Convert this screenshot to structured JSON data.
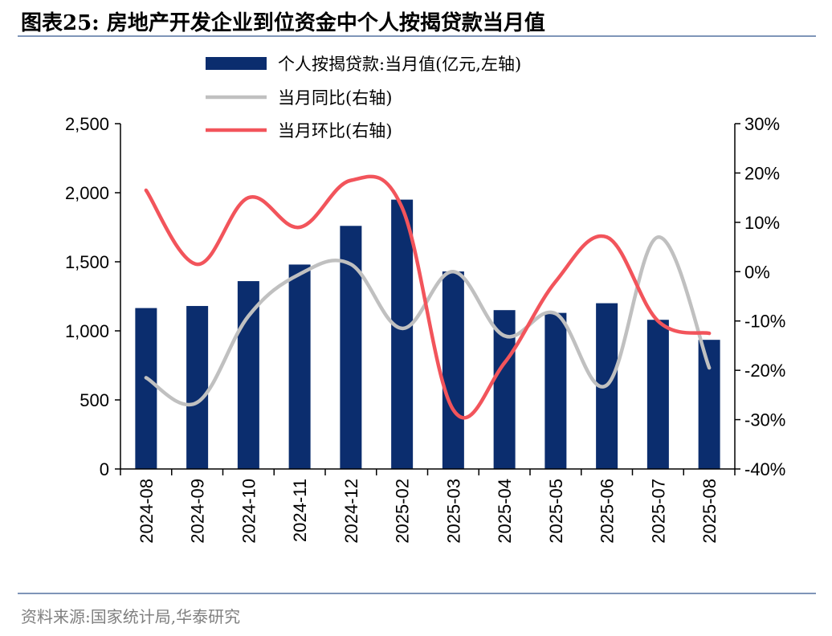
{
  "title": "图表25:  房地产开发企业到位资金中个人按揭贷款当月值",
  "source": "资料来源:国家统计局,华泰研究",
  "colors": {
    "bar": "#0b2d6e",
    "yoy": "#c0c0c0",
    "mom": "#f2545b",
    "rule": "#7f95b8"
  },
  "chart_data": {
    "type": "bar",
    "categories": [
      "2024-08",
      "2024-09",
      "2024-10",
      "2024-11",
      "2024-12",
      "2025-02",
      "2025-03",
      "2025-04",
      "2025-05",
      "2025-06",
      "2025-07",
      "2025-08"
    ],
    "series": [
      {
        "name": "个人按揭贷款:当月值(亿元,左轴)",
        "type": "bar",
        "axis": "left",
        "values": [
          1165,
          1180,
          1360,
          1480,
          1760,
          1950,
          1430,
          1150,
          1130,
          1200,
          1080,
          935
        ]
      },
      {
        "name": "当月同比(右轴)",
        "type": "line",
        "axis": "right",
        "values": [
          -21.5,
          -26.5,
          -9,
          -0.5,
          1.5,
          -11.5,
          0,
          -13,
          -8.5,
          -23,
          7,
          -19.5
        ]
      },
      {
        "name": "当月环比(右轴)",
        "type": "line",
        "axis": "right",
        "values": [
          16.5,
          1.5,
          15,
          9,
          18.5,
          13,
          -28,
          -18.5,
          -2,
          7,
          -10,
          -12.5
        ]
      }
    ],
    "y_left": {
      "min": 0,
      "max": 2500,
      "ticks": [
        "0",
        "500",
        "1,000",
        "1,500",
        "2,000",
        "2,500"
      ]
    },
    "y_right": {
      "min": -40,
      "max": 30,
      "ticks": [
        "-40%",
        "-30%",
        "-20%",
        "-10%",
        "0%",
        "10%",
        "20%",
        "30%"
      ]
    },
    "legend_position": "top-center",
    "grid": false
  }
}
